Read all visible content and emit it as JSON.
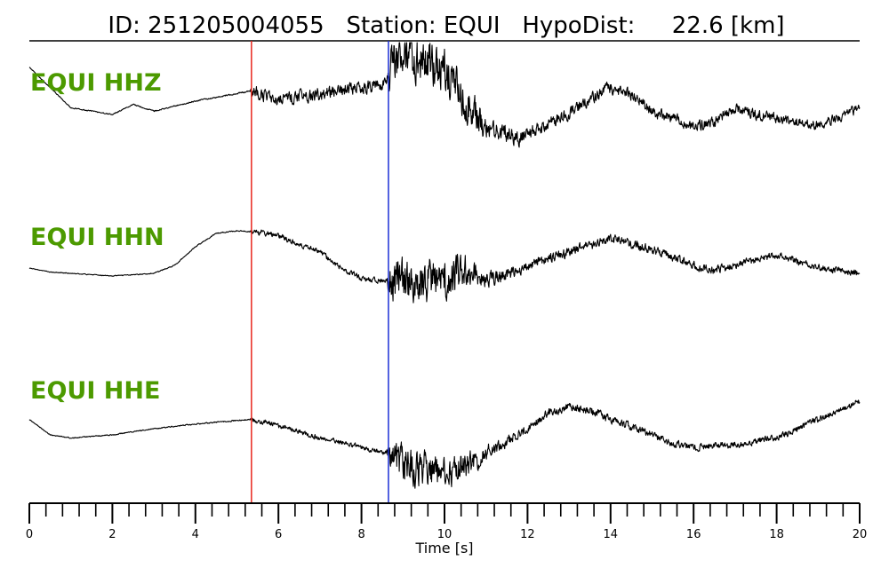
{
  "title": {
    "id_label": "ID:",
    "id_value": "251205004055",
    "station_label": "Station:",
    "station_value": "EQUI",
    "hypodist_label": "HypoDist:",
    "hypodist_value": "22.6",
    "hypodist_unit": "[km]"
  },
  "colors": {
    "label": "#4c9a00",
    "p_pick": "#e8261c",
    "s_pick": "#1b2fd6",
    "trace": "#000000"
  },
  "chart_data": {
    "type": "line",
    "xlabel": "Time [s]",
    "xlim": [
      0,
      20
    ],
    "x_major_ticks": [
      0,
      2,
      4,
      6,
      8,
      10,
      12,
      14,
      16,
      18,
      20
    ],
    "x_tick_labels": [
      "0",
      "2",
      "4",
      "6",
      "8",
      "10",
      "12",
      "14",
      "16",
      "18",
      "20"
    ],
    "minor_tick_step": 0.4,
    "picks": [
      {
        "phase": "P",
        "time": 5.35,
        "color": "#e8261c"
      },
      {
        "phase": "S",
        "time": 8.65,
        "color": "#1b2fd6"
      }
    ],
    "series": [
      {
        "name": "EQUI HHZ",
        "label": "EQUI HHZ",
        "envelope": [
          [
            0.0,
            0.9
          ],
          [
            0.5,
            0.3
          ],
          [
            1.0,
            -0.3
          ],
          [
            2.0,
            -0.5
          ],
          [
            2.5,
            -0.2
          ],
          [
            3.0,
            -0.4
          ],
          [
            4.0,
            -0.1
          ],
          [
            5.35,
            0.2
          ],
          [
            6.0,
            -0.05
          ],
          [
            7.0,
            0.1
          ],
          [
            8.0,
            0.3
          ],
          [
            8.6,
            0.4
          ],
          [
            9.0,
            1.4
          ],
          [
            9.5,
            1.2
          ],
          [
            10.0,
            0.8
          ],
          [
            10.5,
            -0.1
          ],
          [
            11.0,
            -0.9
          ],
          [
            11.8,
            -1.2
          ],
          [
            12.5,
            -0.8
          ],
          [
            13.2,
            -0.3
          ],
          [
            14.0,
            0.3
          ],
          [
            14.5,
            0.1
          ],
          [
            15.0,
            -0.4
          ],
          [
            15.5,
            -0.6
          ],
          [
            16.0,
            -0.9
          ],
          [
            16.5,
            -0.7
          ],
          [
            17.0,
            -0.3
          ],
          [
            17.5,
            -0.5
          ],
          [
            18.0,
            -0.6
          ],
          [
            19.0,
            -0.8
          ],
          [
            19.5,
            -0.6
          ],
          [
            20.0,
            -0.3
          ]
        ],
        "noise": [
          [
            0,
            0.02
          ],
          [
            5.3,
            0.03
          ],
          [
            5.4,
            0.28
          ],
          [
            8.6,
            0.28
          ],
          [
            8.7,
            1.1
          ],
          [
            10.5,
            0.9
          ],
          [
            11.2,
            0.4
          ],
          [
            12.5,
            0.28
          ],
          [
            20,
            0.2
          ]
        ]
      },
      {
        "name": "EQUI HHN",
        "label": "EQUI HHN",
        "envelope": [
          [
            0.0,
            0.1
          ],
          [
            0.5,
            -0.05
          ],
          [
            1.0,
            -0.1
          ],
          [
            2.0,
            -0.2
          ],
          [
            3.0,
            -0.1
          ],
          [
            3.5,
            0.2
          ],
          [
            4.0,
            0.9
          ],
          [
            4.5,
            1.4
          ],
          [
            5.0,
            1.5
          ],
          [
            5.5,
            1.45
          ],
          [
            6.0,
            1.3
          ],
          [
            7.0,
            0.7
          ],
          [
            7.5,
            0.1
          ],
          [
            8.0,
            -0.3
          ],
          [
            8.6,
            -0.4
          ],
          [
            9.0,
            -0.5
          ],
          [
            9.5,
            -0.4
          ],
          [
            10.0,
            -0.3
          ],
          [
            10.5,
            0.0
          ],
          [
            11.0,
            -0.3
          ],
          [
            11.5,
            -0.2
          ],
          [
            12.0,
            0.2
          ],
          [
            13.0,
            0.7
          ],
          [
            14.0,
            1.2
          ],
          [
            14.5,
            1.0
          ],
          [
            15.0,
            0.8
          ],
          [
            15.5,
            0.5
          ],
          [
            16.0,
            0.2
          ],
          [
            16.5,
            0.0
          ],
          [
            17.0,
            0.2
          ],
          [
            18.0,
            0.6
          ],
          [
            19.0,
            0.1
          ],
          [
            20.0,
            -0.1
          ]
        ],
        "noise": [
          [
            0,
            0.02
          ],
          [
            5.3,
            0.03
          ],
          [
            5.4,
            0.15
          ],
          [
            8.6,
            0.15
          ],
          [
            8.7,
            1.3
          ],
          [
            10.3,
            1.0
          ],
          [
            11.0,
            0.45
          ],
          [
            12.0,
            0.28
          ],
          [
            20,
            0.18
          ]
        ]
      },
      {
        "name": "EQUI HHE",
        "label": "EQUI HHE",
        "envelope": [
          [
            0.0,
            0.5
          ],
          [
            0.5,
            0.0
          ],
          [
            1.0,
            -0.1
          ],
          [
            2.0,
            0.0
          ],
          [
            3.0,
            0.2
          ],
          [
            4.0,
            0.35
          ],
          [
            5.35,
            0.5
          ],
          [
            6.0,
            0.3
          ],
          [
            7.0,
            -0.1
          ],
          [
            8.0,
            -0.4
          ],
          [
            8.6,
            -0.6
          ],
          [
            9.0,
            -0.9
          ],
          [
            9.5,
            -1.1
          ],
          [
            10.0,
            -1.3
          ],
          [
            10.5,
            -1.0
          ],
          [
            11.0,
            -0.6
          ],
          [
            12.0,
            0.2
          ],
          [
            12.5,
            0.7
          ],
          [
            13.0,
            0.9
          ],
          [
            13.5,
            0.8
          ],
          [
            14.0,
            0.5
          ],
          [
            15.0,
            0.0
          ],
          [
            15.5,
            -0.3
          ],
          [
            16.0,
            -0.4
          ],
          [
            17.0,
            -0.3
          ],
          [
            17.5,
            -0.2
          ],
          [
            18.0,
            -0.1
          ],
          [
            19.0,
            0.5
          ],
          [
            20.0,
            1.1
          ]
        ],
        "noise": [
          [
            0,
            0.02
          ],
          [
            5.3,
            0.03
          ],
          [
            5.4,
            0.12
          ],
          [
            8.6,
            0.12
          ],
          [
            8.7,
            0.9
          ],
          [
            10.5,
            0.7
          ],
          [
            11.2,
            0.3
          ],
          [
            12.0,
            0.2
          ],
          [
            20,
            0.14
          ]
        ]
      }
    ]
  }
}
